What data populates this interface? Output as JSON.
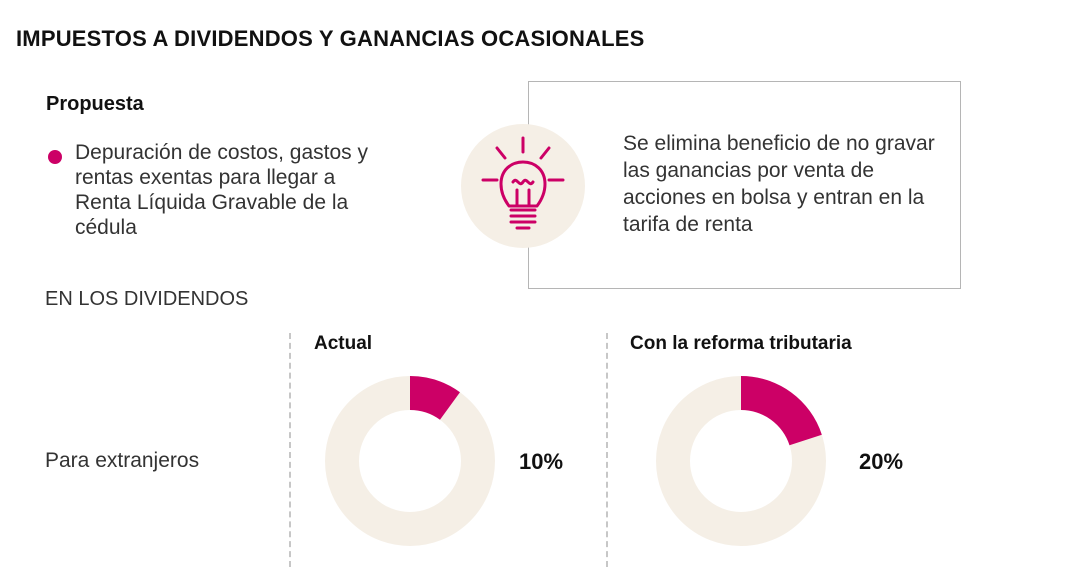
{
  "title": "IMPUESTOS A DIVIDENDOS Y GANANCIAS OCASIONALES",
  "subtitle": "Propuesta",
  "bullet": "Depuración de costos, gastos y rentas exentas para llegar a Renta Líquida Gravable de la cédula",
  "info_text": "Se elimina beneficio de no gravar las ganancias por venta de acciones en bolsa y entran en la tarifa de renta",
  "section_label": "EN LOS DIVIDENDOS",
  "colors": {
    "accent": "#cc0066",
    "track": "#f5efe6"
  },
  "icons": {
    "info": "lightbulb-icon"
  },
  "chart_data": {
    "type": "pie",
    "row_label": "Para extranjeros",
    "series": [
      {
        "name": "Actual",
        "value": 10,
        "label": "10%"
      },
      {
        "name": "Con la reforma tributaria",
        "value": 20,
        "label": "20%"
      }
    ],
    "max": 100
  }
}
